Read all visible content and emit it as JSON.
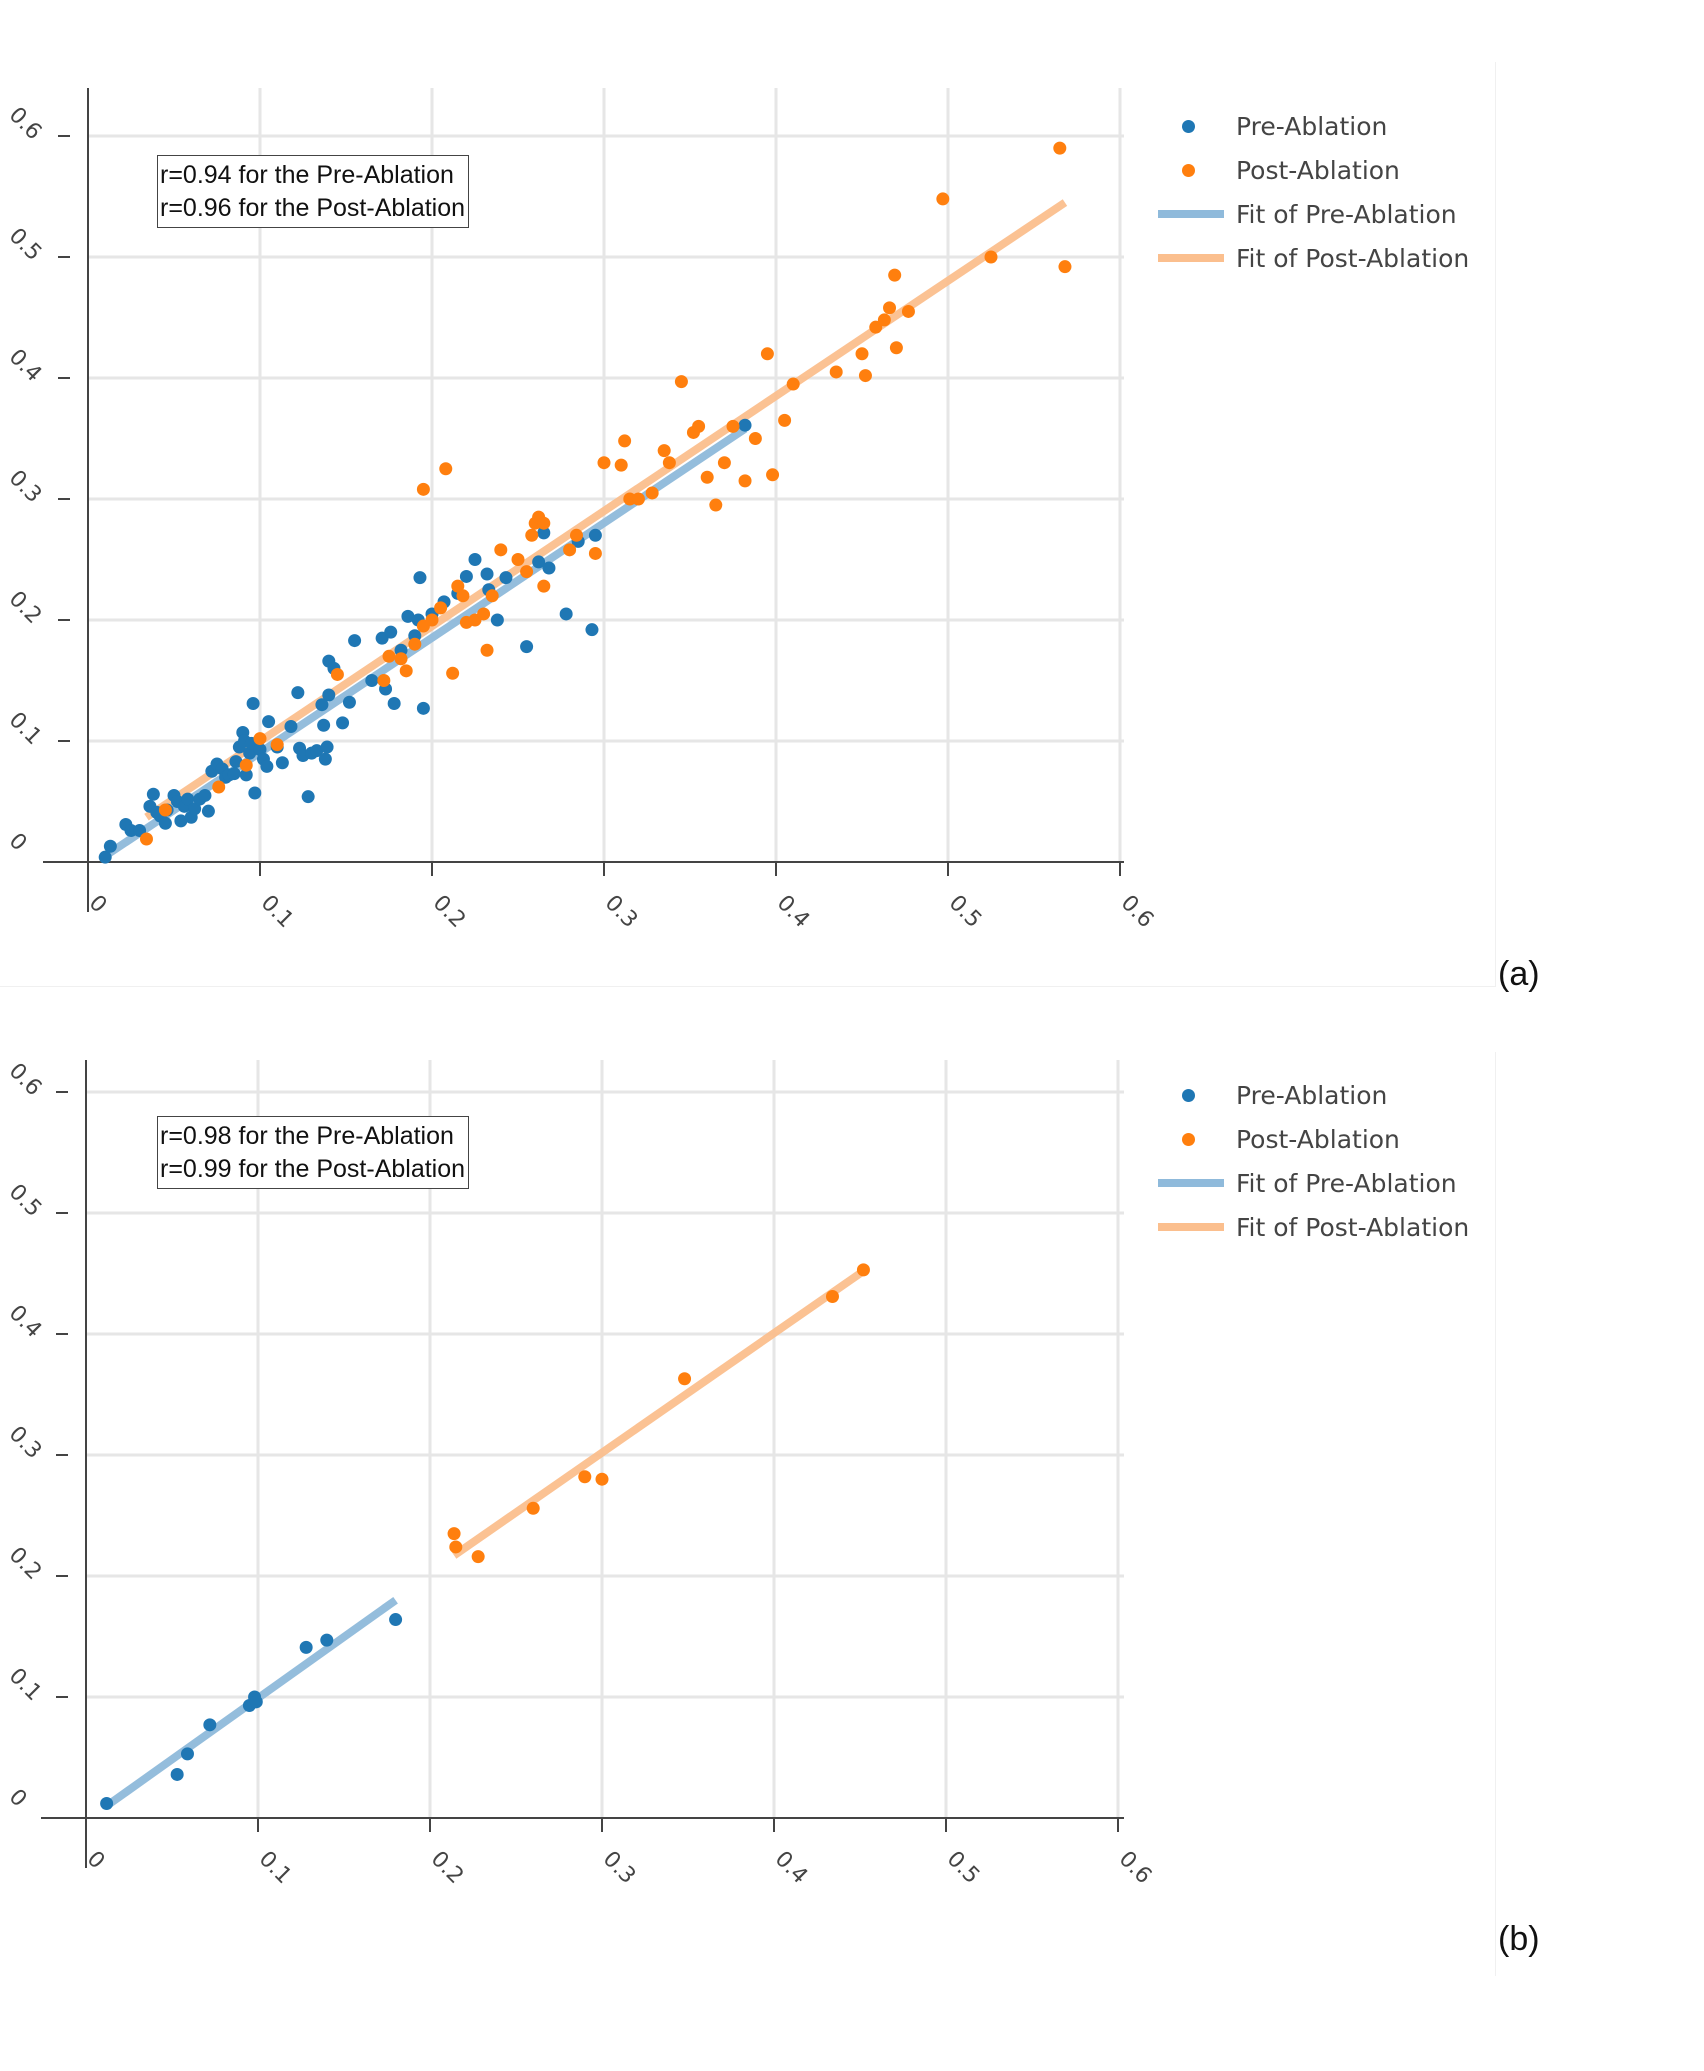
{
  "colors": {
    "pre": "#1f77b4",
    "post": "#ff7f0e",
    "pre_fit": "#8fbadb",
    "post_fit": "#fbbf8e",
    "grid": "#e6e6e6",
    "axis": "#444444"
  },
  "panels": [
    {
      "label": "(a)",
      "annotation": [
        "r=0.94 for the Pre-Ablation",
        "r=0.96 for the Post-Ablation"
      ],
      "legend": [
        {
          "label": "Pre-Ablation",
          "kind": "marker",
          "color": "#1f77b4"
        },
        {
          "label": "Post-Ablation",
          "kind": "marker",
          "color": "#ff7f0e"
        },
        {
          "label": "Fit of Pre-Ablation",
          "kind": "line",
          "color": "#8fbadb"
        },
        {
          "label": "Fit of Post-Ablation",
          "kind": "line",
          "color": "#fbbf8e"
        }
      ]
    },
    {
      "label": "(b)",
      "annotation": [
        "r=0.98 for the Pre-Ablation",
        "r=0.99 for the Post-Ablation"
      ],
      "legend": [
        {
          "label": "Pre-Ablation",
          "kind": "marker",
          "color": "#1f77b4"
        },
        {
          "label": "Post-Ablation",
          "kind": "marker",
          "color": "#ff7f0e"
        },
        {
          "label": "Fit of Pre-Ablation",
          "kind": "line",
          "color": "#8fbadb"
        },
        {
          "label": "Fit of Post-Ablation",
          "kind": "line",
          "color": "#fbbf8e"
        }
      ]
    }
  ],
  "chart_data": [
    {
      "type": "scatter",
      "title": "",
      "xlabel": "",
      "ylabel": "",
      "xlim": [
        0,
        0.6
      ],
      "ylim": [
        0,
        0.6
      ],
      "xticks": [
        "0",
        "0.1",
        "0.2",
        "0.3",
        "0.4",
        "0.5",
        "0.6"
      ],
      "yticks": [
        "0",
        "0.1",
        "0.2",
        "0.3",
        "0.4",
        "0.5",
        "0.6"
      ],
      "grid": true,
      "legend_position": "right",
      "series": [
        {
          "name": "Pre-Ablation",
          "type": "scatter",
          "points": [
            [
              0.01,
              0.004
            ],
            [
              0.013,
              0.013
            ],
            [
              0.022,
              0.031
            ],
            [
              0.025,
              0.026
            ],
            [
              0.03,
              0.026
            ],
            [
              0.036,
              0.046
            ],
            [
              0.038,
              0.056
            ],
            [
              0.04,
              0.041
            ],
            [
              0.042,
              0.038
            ],
            [
              0.045,
              0.032
            ],
            [
              0.046,
              0.043
            ],
            [
              0.05,
              0.055
            ],
            [
              0.052,
              0.05
            ],
            [
              0.054,
              0.034
            ],
            [
              0.056,
              0.046
            ],
            [
              0.058,
              0.052
            ],
            [
              0.06,
              0.037
            ],
            [
              0.062,
              0.044
            ],
            [
              0.065,
              0.052
            ],
            [
              0.068,
              0.055
            ],
            [
              0.07,
              0.042
            ],
            [
              0.072,
              0.075
            ],
            [
              0.075,
              0.081
            ],
            [
              0.078,
              0.077
            ],
            [
              0.08,
              0.07
            ],
            [
              0.082,
              0.072
            ],
            [
              0.085,
              0.073
            ],
            [
              0.086,
              0.083
            ],
            [
              0.088,
              0.095
            ],
            [
              0.09,
              0.107
            ],
            [
              0.091,
              0.1
            ],
            [
              0.092,
              0.072
            ],
            [
              0.094,
              0.09
            ],
            [
              0.095,
              0.098
            ],
            [
              0.096,
              0.131
            ],
            [
              0.097,
              0.057
            ],
            [
              0.1,
              0.093
            ],
            [
              0.102,
              0.085
            ],
            [
              0.104,
              0.079
            ],
            [
              0.105,
              0.116
            ],
            [
              0.11,
              0.095
            ],
            [
              0.113,
              0.082
            ],
            [
              0.118,
              0.112
            ],
            [
              0.122,
              0.14
            ],
            [
              0.123,
              0.094
            ],
            [
              0.125,
              0.088
            ],
            [
              0.128,
              0.054
            ],
            [
              0.13,
              0.09
            ],
            [
              0.133,
              0.092
            ],
            [
              0.136,
              0.13
            ],
            [
              0.137,
              0.113
            ],
            [
              0.138,
              0.085
            ],
            [
              0.139,
              0.095
            ],
            [
              0.14,
              0.138
            ],
            [
              0.14,
              0.166
            ],
            [
              0.143,
              0.16
            ],
            [
              0.148,
              0.115
            ],
            [
              0.152,
              0.132
            ],
            [
              0.155,
              0.183
            ],
            [
              0.165,
              0.15
            ],
            [
              0.171,
              0.185
            ],
            [
              0.173,
              0.143
            ],
            [
              0.176,
              0.19
            ],
            [
              0.178,
              0.131
            ],
            [
              0.182,
              0.175
            ],
            [
              0.186,
              0.203
            ],
            [
              0.19,
              0.187
            ],
            [
              0.192,
              0.2
            ],
            [
              0.193,
              0.235
            ],
            [
              0.195,
              0.127
            ],
            [
              0.2,
              0.205
            ],
            [
              0.207,
              0.215
            ],
            [
              0.215,
              0.222
            ],
            [
              0.22,
              0.236
            ],
            [
              0.225,
              0.25
            ],
            [
              0.232,
              0.238
            ],
            [
              0.233,
              0.225
            ],
            [
              0.238,
              0.2
            ],
            [
              0.243,
              0.235
            ],
            [
              0.255,
              0.178
            ],
            [
              0.262,
              0.248
            ],
            [
              0.265,
              0.272
            ],
            [
              0.268,
              0.243
            ],
            [
              0.278,
              0.205
            ],
            [
              0.285,
              0.265
            ],
            [
              0.293,
              0.192
            ],
            [
              0.295,
              0.27
            ],
            [
              0.382,
              0.361
            ]
          ],
          "color": "#1f77b4"
        },
        {
          "name": "Post-Ablation",
          "type": "scatter",
          "points": [
            [
              0.034,
              0.019
            ],
            [
              0.045,
              0.043
            ],
            [
              0.076,
              0.062
            ],
            [
              0.092,
              0.08
            ],
            [
              0.1,
              0.102
            ],
            [
              0.11,
              0.097
            ],
            [
              0.145,
              0.155
            ],
            [
              0.172,
              0.15
            ],
            [
              0.175,
              0.17
            ],
            [
              0.182,
              0.168
            ],
            [
              0.185,
              0.158
            ],
            [
              0.19,
              0.18
            ],
            [
              0.195,
              0.195
            ],
            [
              0.195,
              0.308
            ],
            [
              0.2,
              0.2
            ],
            [
              0.205,
              0.21
            ],
            [
              0.208,
              0.325
            ],
            [
              0.212,
              0.156
            ],
            [
              0.215,
              0.228
            ],
            [
              0.218,
              0.22
            ],
            [
              0.22,
              0.198
            ],
            [
              0.225,
              0.2
            ],
            [
              0.23,
              0.205
            ],
            [
              0.232,
              0.175
            ],
            [
              0.235,
              0.22
            ],
            [
              0.24,
              0.258
            ],
            [
              0.25,
              0.25
            ],
            [
              0.255,
              0.24
            ],
            [
              0.258,
              0.27
            ],
            [
              0.26,
              0.28
            ],
            [
              0.262,
              0.285
            ],
            [
              0.265,
              0.28
            ],
            [
              0.265,
              0.228
            ],
            [
              0.28,
              0.258
            ],
            [
              0.284,
              0.27
            ],
            [
              0.295,
              0.255
            ],
            [
              0.3,
              0.33
            ],
            [
              0.31,
              0.328
            ],
            [
              0.312,
              0.348
            ],
            [
              0.315,
              0.3
            ],
            [
              0.32,
              0.3
            ],
            [
              0.328,
              0.305
            ],
            [
              0.335,
              0.34
            ],
            [
              0.338,
              0.33
            ],
            [
              0.345,
              0.397
            ],
            [
              0.352,
              0.355
            ],
            [
              0.355,
              0.36
            ],
            [
              0.36,
              0.318
            ],
            [
              0.365,
              0.295
            ],
            [
              0.37,
              0.33
            ],
            [
              0.375,
              0.36
            ],
            [
              0.382,
              0.315
            ],
            [
              0.388,
              0.35
            ],
            [
              0.395,
              0.42
            ],
            [
              0.398,
              0.32
            ],
            [
              0.405,
              0.365
            ],
            [
              0.41,
              0.395
            ],
            [
              0.435,
              0.405
            ],
            [
              0.45,
              0.42
            ],
            [
              0.452,
              0.402
            ],
            [
              0.458,
              0.442
            ],
            [
              0.463,
              0.448
            ],
            [
              0.466,
              0.458
            ],
            [
              0.469,
              0.485
            ],
            [
              0.47,
              0.425
            ],
            [
              0.477,
              0.455
            ],
            [
              0.497,
              0.548
            ],
            [
              0.525,
              0.5
            ],
            [
              0.565,
              0.59
            ],
            [
              0.568,
              0.492
            ]
          ],
          "color": "#ff7f0e"
        },
        {
          "name": "Fit of Pre-Ablation",
          "type": "line",
          "points": [
            [
              0.01,
              0.005
            ],
            [
              0.382,
              0.358
            ]
          ],
          "color": "#8fbadb"
        },
        {
          "name": "Fit of Post-Ablation",
          "type": "line",
          "points": [
            [
              0.034,
              0.037
            ],
            [
              0.568,
              0.545
            ]
          ],
          "color": "#fbbf8e"
        }
      ]
    },
    {
      "type": "scatter",
      "title": "",
      "xlabel": "",
      "ylabel": "",
      "xlim": [
        0,
        0.6
      ],
      "ylim": [
        0,
        0.6
      ],
      "xticks": [
        "0",
        "0.1",
        "0.2",
        "0.3",
        "0.4",
        "0.5",
        "0.6"
      ],
      "yticks": [
        "0",
        "0.1",
        "0.2",
        "0.3",
        "0.4",
        "0.5",
        "0.6"
      ],
      "grid": true,
      "legend_position": "right",
      "series": [
        {
          "name": "Pre-Ablation",
          "type": "scatter",
          "points": [
            [
              0.012,
              0.012
            ],
            [
              0.053,
              0.036
            ],
            [
              0.059,
              0.053
            ],
            [
              0.072,
              0.077
            ],
            [
              0.095,
              0.093
            ],
            [
              0.098,
              0.1
            ],
            [
              0.099,
              0.096
            ],
            [
              0.128,
              0.141
            ],
            [
              0.14,
              0.147
            ],
            [
              0.18,
              0.164
            ]
          ],
          "color": "#1f77b4"
        },
        {
          "name": "Post-Ablation",
          "type": "scatter",
          "points": [
            [
              0.214,
              0.235
            ],
            [
              0.215,
              0.224
            ],
            [
              0.228,
              0.216
            ],
            [
              0.26,
              0.256
            ],
            [
              0.29,
              0.282
            ],
            [
              0.3,
              0.28
            ],
            [
              0.348,
              0.363
            ],
            [
              0.434,
              0.431
            ],
            [
              0.452,
              0.453
            ]
          ],
          "color": "#ff7f0e"
        },
        {
          "name": "Fit of Pre-Ablation",
          "type": "line",
          "points": [
            [
              0.012,
              0.01
            ],
            [
              0.18,
              0.18
            ]
          ],
          "color": "#8fbadb"
        },
        {
          "name": "Fit of Post-Ablation",
          "type": "line",
          "points": [
            [
              0.214,
              0.217
            ],
            [
              0.452,
              0.452
            ]
          ],
          "color": "#fbbf8e"
        }
      ]
    }
  ]
}
